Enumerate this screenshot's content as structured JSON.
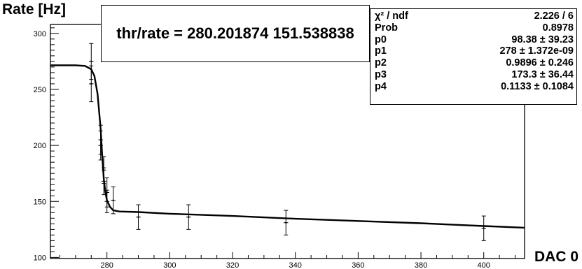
{
  "chart_data": {
    "type": "scatter",
    "ylabel": "Rate [Hz]",
    "xlabel": "DAC 0",
    "xlim": [
      262,
      413
    ],
    "ylim": [
      99,
      308
    ],
    "x_ticks": [
      280,
      300,
      320,
      340,
      360,
      380,
      400
    ],
    "y_ticks": [
      100,
      150,
      200,
      250,
      300
    ],
    "annotation": "thr/rate = 280.201874 151.538838",
    "points": [
      {
        "x": 275,
        "y": 275,
        "yerr": 16,
        "xerr": 0.5
      },
      {
        "x": 275,
        "y": 255,
        "yerr": 16,
        "xerr": 0.5
      },
      {
        "x": 278,
        "y": 205,
        "yerr": 13,
        "xerr": 0.5
      },
      {
        "x": 278,
        "y": 200,
        "yerr": 13,
        "xerr": 0.5
      },
      {
        "x": 279,
        "y": 178,
        "yerr": 12,
        "xerr": 0.5
      },
      {
        "x": 279,
        "y": 168,
        "yerr": 12,
        "xerr": 0.5
      },
      {
        "x": 280,
        "y": 158,
        "yerr": 13,
        "xerr": 0.5
      },
      {
        "x": 280,
        "y": 150,
        "yerr": 10,
        "xerr": 0.5
      },
      {
        "x": 282,
        "y": 151,
        "yerr": 12,
        "xerr": 0.5
      },
      {
        "x": 290,
        "y": 136,
        "yerr": 11,
        "xerr": 0.5
      },
      {
        "x": 306,
        "y": 136,
        "yerr": 11,
        "xerr": 0.5
      },
      {
        "x": 337,
        "y": 131,
        "yerr": 11,
        "xerr": 0.5
      },
      {
        "x": 400,
        "y": 126,
        "yerr": 11,
        "xerr": 0.5
      }
    ],
    "fit_curve": [
      [
        262,
        271.5
      ],
      [
        270,
        271.5
      ],
      [
        273,
        271
      ],
      [
        275,
        268
      ],
      [
        276,
        262
      ],
      [
        277,
        246
      ],
      [
        278,
        215
      ],
      [
        278.5,
        190
      ],
      [
        279,
        170
      ],
      [
        279.5,
        158
      ],
      [
        280,
        151
      ],
      [
        281,
        145
      ],
      [
        282,
        142
      ],
      [
        284,
        141
      ],
      [
        290,
        140.5
      ],
      [
        300,
        139
      ],
      [
        320,
        137
      ],
      [
        340,
        134.5
      ],
      [
        360,
        132.5
      ],
      [
        380,
        130.5
      ],
      [
        400,
        128
      ],
      [
        413,
        126.5
      ]
    ],
    "stats": [
      {
        "label": "χ² / ndf",
        "value": "2.226 / 6"
      },
      {
        "label": "Prob",
        "value": "0.8978"
      },
      {
        "label": "p0",
        "value": "98.38 ± 39.23"
      },
      {
        "label": "p1",
        "value": "278 ± 1.372e-09"
      },
      {
        "label": "p2",
        "value": "0.9896 ± 0.246"
      },
      {
        "label": "p3",
        "value": "173.3 ± 36.44"
      },
      {
        "label": "p4",
        "value": "0.1133 ± 0.1084"
      }
    ]
  }
}
